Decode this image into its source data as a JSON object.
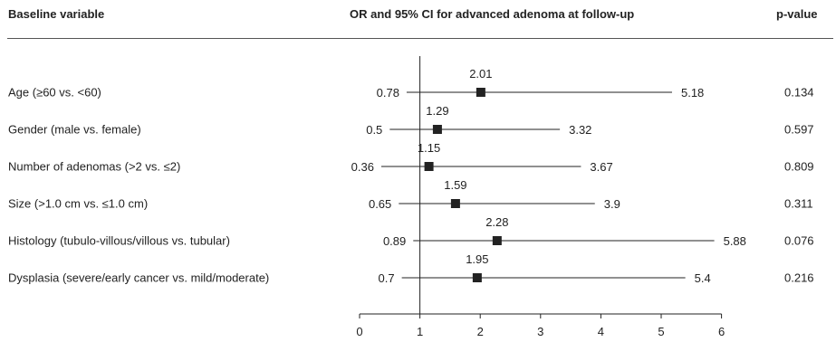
{
  "headers": {
    "variable": "Baseline variable",
    "or_ci": "OR and 95% CI for advanced adenoma at follow-up",
    "pvalue": "p-value"
  },
  "rows": [
    {
      "label": "Age (≥60 vs. <60)",
      "or": "2.01",
      "lo": "0.78",
      "hi": "5.18",
      "p": "0.134"
    },
    {
      "label": "Gender (male vs. female)",
      "or": "1.29",
      "lo": "0.5",
      "hi": "3.32",
      "p": "0.597"
    },
    {
      "label": "Number of adenomas (>2 vs. ≤2)",
      "or": "1.15",
      "lo": "0.36",
      "hi": "3.67",
      "p": "0.809"
    },
    {
      "label": "Size (>1.0 cm vs. ≤1.0 cm)",
      "or": "1.59",
      "lo": "0.65",
      "hi": "3.9",
      "p": "0.311"
    },
    {
      "label": "Histology (tubulo-villous/villous vs. tubular)",
      "or": "2.28",
      "lo": "0.89",
      "hi": "5.88",
      "p": "0.076"
    },
    {
      "label": "Dysplasia (severe/early cancer vs. mild/moderate)",
      "or": "1.95",
      "lo": "0.7",
      "hi": "5.4",
      "p": "0.216"
    }
  ],
  "chart_data": {
    "type": "forest",
    "title": "OR and 95% CI for advanced adenoma at follow-up",
    "categories": [
      "Age (≥60 vs. <60)",
      "Gender (male vs. female)",
      "Number of adenomas (>2 vs. ≤2)",
      "Size (>1.0 cm vs. ≤1.0 cm)",
      "Histology (tubulo-villous/villous vs. tubular)",
      "Dysplasia (severe/early cancer vs. mild/moderate)"
    ],
    "or": [
      2.01,
      1.29,
      1.15,
      1.59,
      2.28,
      1.95
    ],
    "ci_low": [
      0.78,
      0.5,
      0.36,
      0.65,
      0.89,
      0.7
    ],
    "ci_high": [
      5.18,
      3.32,
      3.67,
      3.9,
      5.88,
      5.4
    ],
    "p_values": [
      0.134,
      0.597,
      0.809,
      0.311,
      0.076,
      0.216
    ],
    "xlim": [
      0,
      6
    ],
    "xticks": [
      0,
      1,
      2,
      3,
      4,
      5,
      6
    ],
    "reference_line": 1,
    "grid": false,
    "marker_color": "#222222"
  }
}
